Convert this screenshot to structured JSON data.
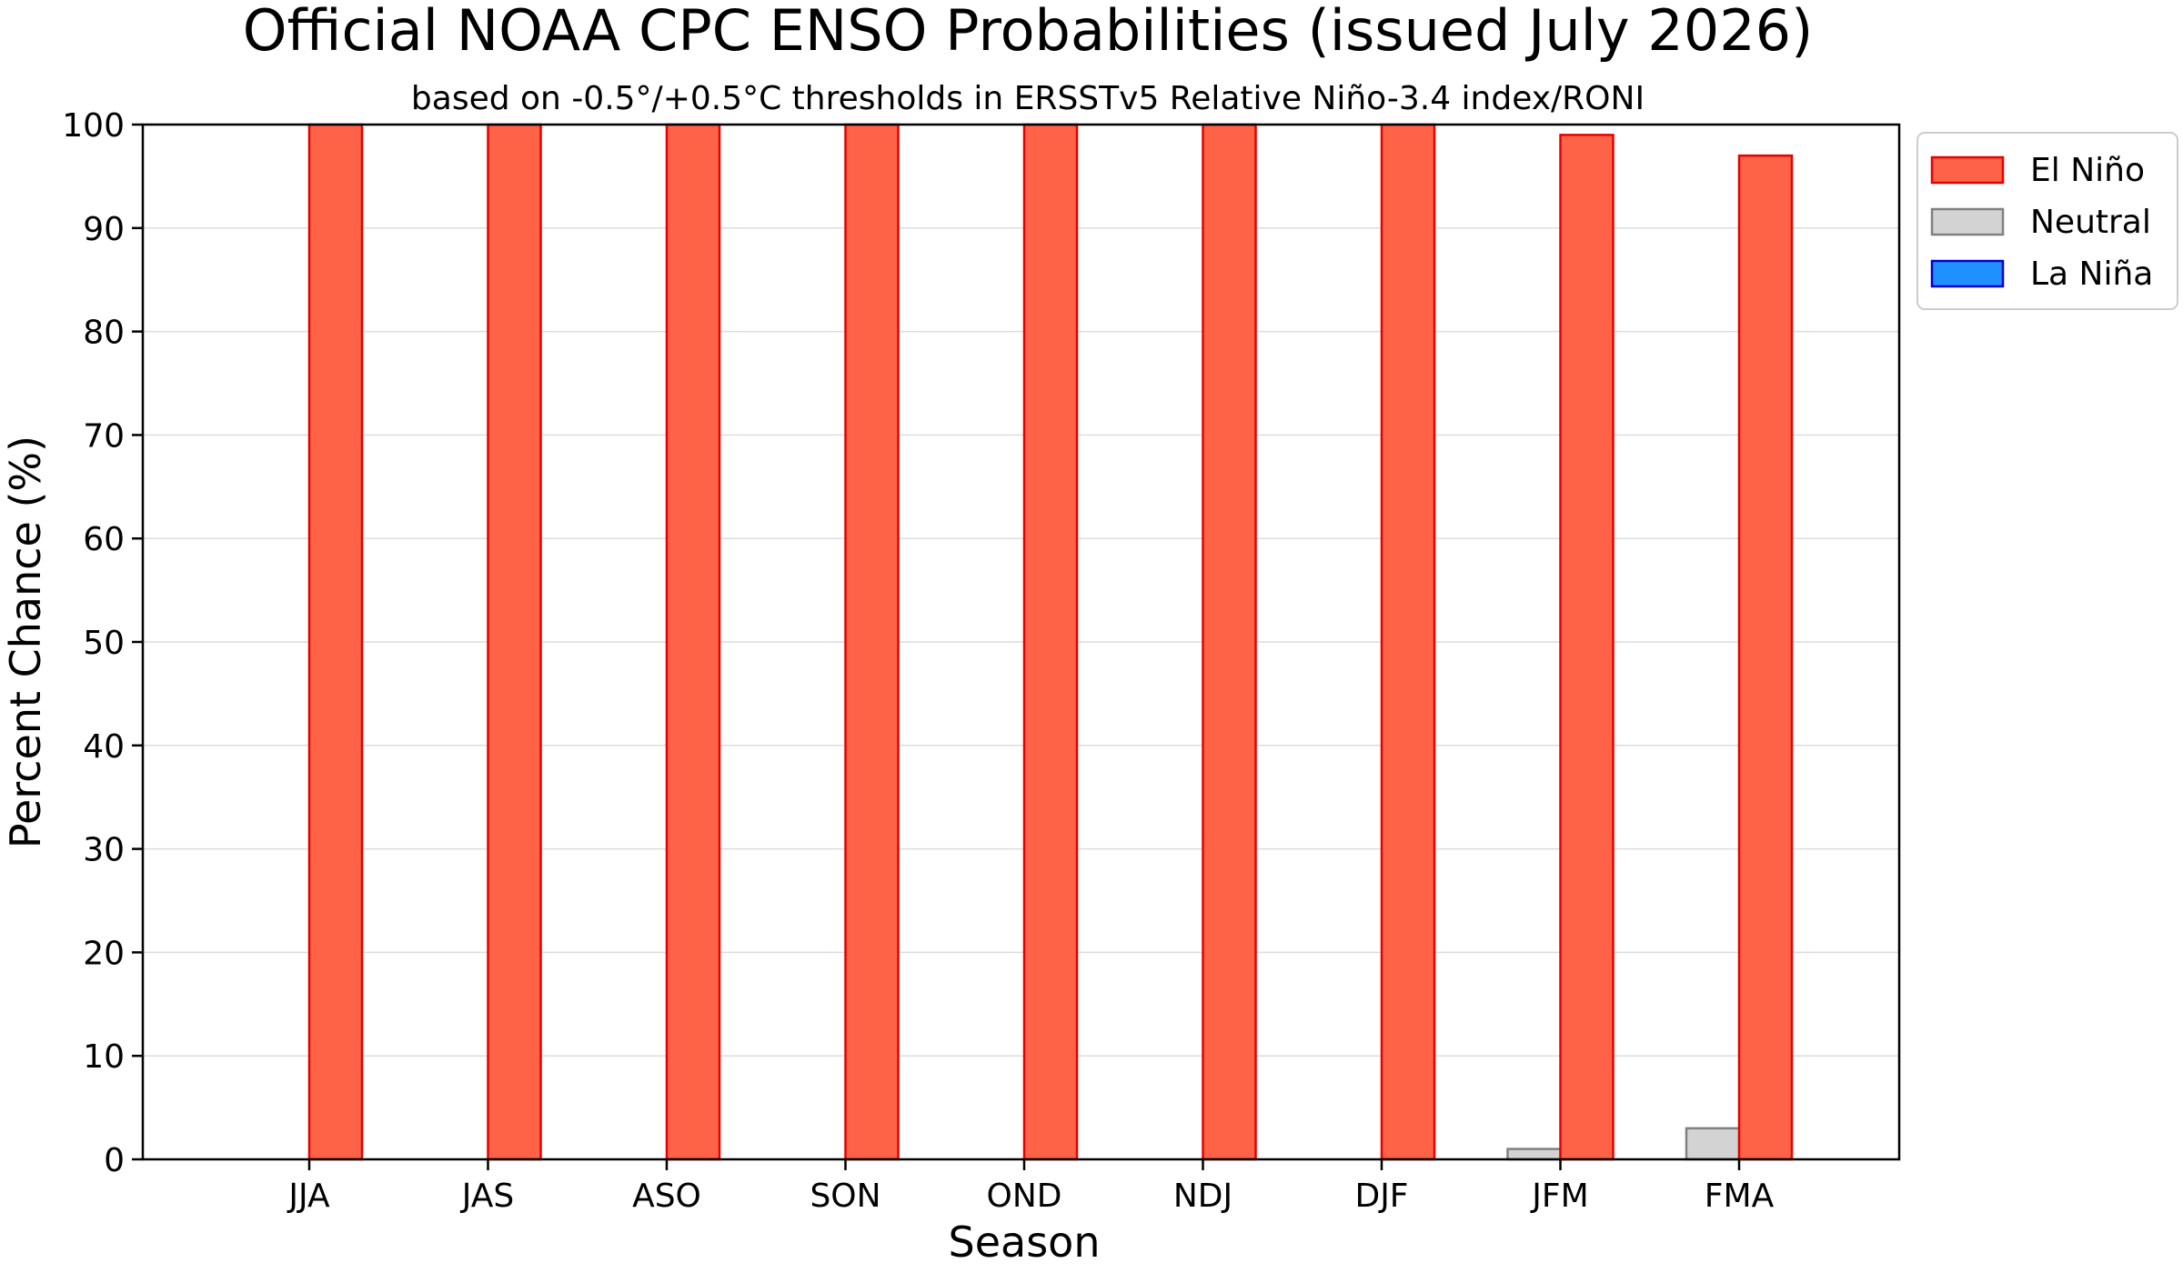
{
  "chart_data": {
    "type": "bar",
    "title": "Official NOAA CPC ENSO Probabilities (issued July 2026)",
    "subtitle": "based on -0.5°/+0.5°C thresholds in ERSSTv5 Relative Niño-3.4 index/RONI",
    "xlabel": "Season",
    "ylabel": "Percent Chance (%)",
    "ylim": [
      0,
      100
    ],
    "yticks": [
      0,
      10,
      20,
      30,
      40,
      50,
      60,
      70,
      80,
      90,
      100
    ],
    "grid": true,
    "legend_position": "top-right-outside",
    "categories": [
      "JJA",
      "JAS",
      "ASO",
      "SON",
      "OND",
      "NDJ",
      "DJF",
      "JFM",
      "FMA"
    ],
    "series": [
      {
        "name": "La Niña",
        "fill": "#1e90ff",
        "stroke": "#0000cc",
        "values": [
          0,
          0,
          0,
          0,
          0,
          0,
          0,
          0,
          0
        ]
      },
      {
        "name": "Neutral",
        "fill": "#d3d3d3",
        "stroke": "#808080",
        "values": [
          0,
          0,
          0,
          0,
          0,
          0,
          0,
          1,
          3
        ]
      },
      {
        "name": "El Niño",
        "fill": "#ff6347",
        "stroke": "#e60000",
        "values": [
          100,
          100,
          100,
          100,
          100,
          100,
          100,
          99,
          97
        ]
      }
    ],
    "legend_order": [
      "El Niño",
      "Neutral",
      "La Niña"
    ]
  }
}
